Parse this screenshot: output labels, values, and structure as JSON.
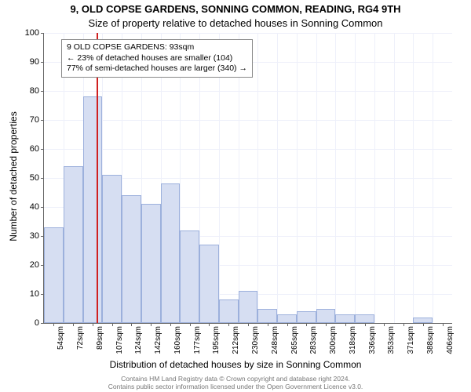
{
  "title_main": "9, OLD COPSE GARDENS, SONNING COMMON, READING, RG4 9TH",
  "title_sub": "Size of property relative to detached houses in Sonning Common",
  "ylabel": "Number of detached properties",
  "xlabel": "Distribution of detached houses by size in Sonning Common",
  "footer_line1": "Contains HM Land Registry data © Crown copyright and database right 2024.",
  "footer_line2": "Contains public sector information licensed under the Open Government Licence v3.0.",
  "chart": {
    "type": "histogram",
    "ylim": [
      0,
      100
    ],
    "ytick_step": 10,
    "bar_color": "#d6def2",
    "bar_border": "#9cb0dc",
    "grid_color": "#eef0fa",
    "background": "#ffffff",
    "marker_color": "#d02020",
    "marker_x": 93,
    "categories": [
      "54sqm",
      "72sqm",
      "89sqm",
      "107sqm",
      "124sqm",
      "142sqm",
      "160sqm",
      "177sqm",
      "195sqm",
      "212sqm",
      "230sqm",
      "248sqm",
      "265sqm",
      "283sqm",
      "300sqm",
      "318sqm",
      "336sqm",
      "353sqm",
      "371sqm",
      "388sqm",
      "406sqm"
    ],
    "values": [
      33,
      54,
      78,
      51,
      44,
      41,
      48,
      32,
      27,
      8,
      11,
      5,
      3,
      4,
      5,
      3,
      3,
      0,
      0,
      2,
      0
    ]
  },
  "annotation": {
    "line1": "9 OLD COPSE GARDENS: 93sqm",
    "line2": "← 23% of detached houses are smaller (104)",
    "line3": "77% of semi-detached houses are larger (340) →"
  }
}
